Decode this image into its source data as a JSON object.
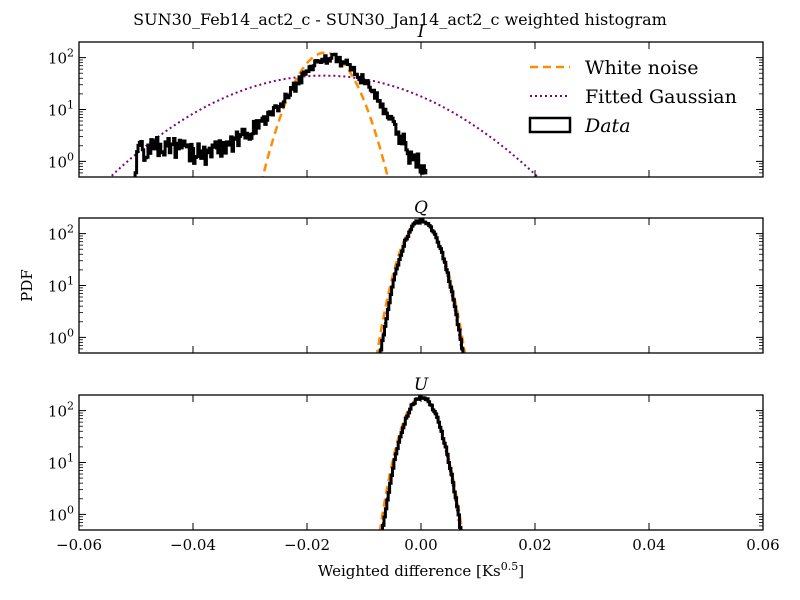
{
  "figure_title": "SUN30_Feb14_act2_c - SUN30_Jan14_act2_c weighted histogram",
  "chart_data": [
    {
      "type": "line",
      "title": "I",
      "yscale": "log",
      "xlim": [
        -0.06,
        0.06
      ],
      "ylim": [
        0.5,
        200
      ],
      "yticks": [
        1,
        10,
        100
      ],
      "ytick_labels": [
        "10^0",
        "10^1",
        "10^2"
      ],
      "legend": {
        "placement": "top-right",
        "entries": [
          "White noise",
          "Fitted Gaussian",
          "Data"
        ]
      },
      "series": [
        {
          "name": "White noise",
          "color": "#ff8c00",
          "style": "dashed",
          "model": "gaussian",
          "peak": 125,
          "mean": -0.0168,
          "sigma": 0.0033
        },
        {
          "name": "Fitted Gaussian",
          "color": "#800080",
          "style": "dotted",
          "model": "gaussian",
          "peak": 45,
          "mean": -0.017,
          "sigma": 0.0125
        },
        {
          "name": "Data",
          "color": "#000000",
          "style": "step",
          "x": [
            -0.0504,
            -0.05,
            -0.048,
            -0.046,
            -0.044,
            -0.042,
            -0.04,
            -0.038,
            -0.036,
            -0.034,
            -0.032,
            -0.03,
            -0.028,
            -0.026,
            -0.024,
            -0.022,
            -0.02,
            -0.018,
            -0.016,
            -0.015,
            -0.014,
            -0.012,
            -0.01,
            -0.008,
            -0.006,
            -0.004,
            -0.002,
            0.0,
            0.001
          ],
          "y": [
            0.55,
            1.5,
            2.0,
            2.1,
            2.0,
            1.8,
            1.6,
            1.5,
            1.7,
            2.1,
            2.8,
            3.8,
            5.5,
            9,
            16,
            30,
            55,
            85,
            100,
            98,
            88,
            60,
            35,
            18,
            8,
            3.5,
            1.5,
            0.8,
            0.5
          ]
        }
      ]
    },
    {
      "type": "line",
      "title": "Q",
      "ylabel": "PDF",
      "yscale": "log",
      "xlim": [
        -0.06,
        0.06
      ],
      "ylim": [
        0.5,
        200
      ],
      "yticks": [
        1,
        10,
        100
      ],
      "ytick_labels": [
        "10^0",
        "10^1",
        "10^2"
      ],
      "series": [
        {
          "name": "White noise",
          "color": "#ff8c00",
          "style": "dashed",
          "model": "gaussian",
          "peak": 175,
          "mean": 0.0,
          "sigma": 0.00225
        },
        {
          "name": "Fitted Gaussian",
          "color": "#800080",
          "style": "dotted",
          "model": "gaussian",
          "peak": 175,
          "mean": 0.0,
          "sigma": 0.0021
        },
        {
          "name": "Data",
          "color": "#000000",
          "style": "step",
          "model": "gaussian",
          "peak": 180,
          "mean": 0.0,
          "sigma": 0.0021
        }
      ]
    },
    {
      "type": "line",
      "title": "U",
      "xlabel": "Weighted difference [Ks^0.5]",
      "yscale": "log",
      "xlim": [
        -0.06,
        0.06
      ],
      "ylim": [
        0.5,
        200
      ],
      "xticks": [
        -0.06,
        -0.04,
        -0.02,
        0.0,
        0.02,
        0.04,
        0.06
      ],
      "xtick_labels": [
        "−0.06",
        "−0.04",
        "−0.02",
        "0.00",
        "0.02",
        "0.04",
        "0.06"
      ],
      "yticks": [
        1,
        10,
        100
      ],
      "ytick_labels": [
        "10^0",
        "10^1",
        "10^2"
      ],
      "series": [
        {
          "name": "White noise",
          "color": "#ff8c00",
          "style": "dashed",
          "model": "gaussian",
          "peak": 178,
          "mean": 0.0,
          "sigma": 0.0021
        },
        {
          "name": "Fitted Gaussian",
          "color": "#800080",
          "style": "dotted",
          "model": "gaussian",
          "peak": 175,
          "mean": 0.0,
          "sigma": 0.002
        },
        {
          "name": "Data",
          "color": "#000000",
          "style": "step",
          "model": "gaussian",
          "peak": 180,
          "mean": 0.0,
          "sigma": 0.002
        }
      ]
    }
  ]
}
